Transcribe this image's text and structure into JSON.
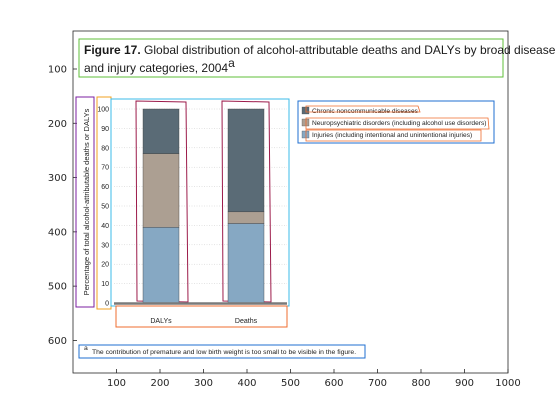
{
  "figure": {
    "title_label": "Figure 17.",
    "title_text_line1": " Global distribution of alcohol-attributable deaths and DALYs by broad disease",
    "title_text_line2": "and injury categories, 2004",
    "title_superscript": "a",
    "y_axis_label": "Percentage of total alcohol-attributable deaths or DALYs",
    "footnote_marker": "a",
    "footnote_text": "The contribution of premature and low birth weight is too small to be visible in the figure."
  },
  "legend": {
    "items": [
      {
        "label": "Chronic noncommunicable diseases",
        "color": "#5a6b76"
      },
      {
        "label": "Neuropsychiatric disorders (including alcohol use disorders)",
        "color": "#ac9f92"
      },
      {
        "label": "Injuries (including intentional and unintentional injuries)",
        "color": "#86a8c3"
      }
    ]
  },
  "inner_ticks": [
    "0",
    "10",
    "20",
    "30",
    "40",
    "50",
    "60",
    "70",
    "80",
    "90",
    "100"
  ],
  "chart_data": {
    "type": "bar",
    "stacked": true,
    "categories": [
      "DALYs",
      "Deaths"
    ],
    "series": [
      {
        "name": "Injuries (including intentional and unintentional injuries)",
        "values": [
          39,
          41
        ],
        "color": "#86a8c3"
      },
      {
        "name": "Neuropsychiatric disorders (including alcohol use disorders)",
        "values": [
          38,
          6
        ],
        "color": "#ac9f92"
      },
      {
        "name": "Chronic noncommunicable diseases",
        "values": [
          23,
          53
        ],
        "color": "#5a6b76"
      }
    ],
    "ylim": [
      0,
      100
    ]
  },
  "outer_axes": {
    "x_ticks": [
      "100",
      "200",
      "300",
      "400",
      "500",
      "600",
      "700",
      "800",
      "900",
      "1000"
    ],
    "y_ticks": [
      "100",
      "200",
      "300",
      "400",
      "500",
      "600"
    ],
    "x_range": [
      0,
      1000
    ],
    "y_range": [
      660,
      30
    ]
  },
  "annotation_colors": {
    "title_box": "#5fbf3a",
    "legend_box": "#1f6fd1",
    "ylabel_box": "#7b1fa2",
    "yticks_box": "#f0a020",
    "bars_box": "#9c1b4a",
    "xticks_box": "#ef6c2f",
    "plot_box": "#3bbbe8",
    "footnote_box": "#1f6fd1"
  }
}
